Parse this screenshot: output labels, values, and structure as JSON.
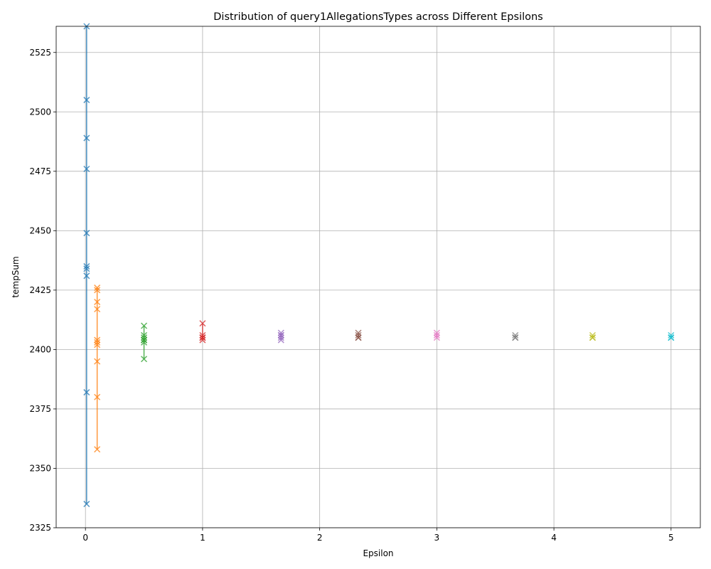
{
  "chart_data": {
    "type": "scatter",
    "title": "Distribution of query1AllegationsTypes across Different Epsilons",
    "xlabel": "Epsilon",
    "ylabel": "tempSum",
    "xlim": [
      -0.25,
      5.25
    ],
    "ylim": [
      2325,
      2536
    ],
    "xticks": [
      0,
      1,
      2,
      3,
      4,
      5
    ],
    "yticks": [
      2325,
      2350,
      2375,
      2400,
      2425,
      2450,
      2475,
      2500,
      2525
    ],
    "grid": true,
    "marker": "x",
    "series": [
      {
        "x": 0.01,
        "color": "#1f77b4",
        "range": [
          2335,
          2536
        ],
        "values": [
          2536,
          2505,
          2489,
          2476,
          2449,
          2435,
          2434,
          2431,
          2382,
          2335
        ]
      },
      {
        "x": 0.1,
        "color": "#ff7f0e",
        "range": [
          2358,
          2426
        ],
        "values": [
          2426,
          2425,
          2420,
          2417,
          2404,
          2403,
          2402,
          2395,
          2380,
          2358
        ]
      },
      {
        "x": 0.5,
        "color": "#2ca02c",
        "range": [
          2396,
          2410
        ],
        "values": [
          2410,
          2406,
          2405,
          2404,
          2404,
          2403,
          2396
        ]
      },
      {
        "x": 1.0,
        "color": "#d62728",
        "range": [
          2404,
          2411
        ],
        "values": [
          2411,
          2406,
          2405,
          2405,
          2404
        ]
      },
      {
        "x": 1.67,
        "color": "#9467bd",
        "range": [
          2404,
          2407
        ],
        "values": [
          2407,
          2406,
          2406,
          2405,
          2404
        ]
      },
      {
        "x": 2.33,
        "color": "#8c564b",
        "range": [
          2405,
          2407
        ],
        "values": [
          2407,
          2406,
          2405,
          2405
        ]
      },
      {
        "x": 3.0,
        "color": "#e377c2",
        "range": [
          2405,
          2407
        ],
        "values": [
          2407,
          2406,
          2405
        ]
      },
      {
        "x": 3.67,
        "color": "#7f7f7f",
        "range": [
          2405,
          2406
        ],
        "values": [
          2406,
          2405,
          2405
        ]
      },
      {
        "x": 4.33,
        "color": "#bcbd22",
        "range": [
          2405,
          2406
        ],
        "values": [
          2406,
          2405,
          2405
        ]
      },
      {
        "x": 5.0,
        "color": "#17becf",
        "range": [
          2405,
          2406
        ],
        "values": [
          2406,
          2405,
          2405
        ]
      }
    ]
  }
}
